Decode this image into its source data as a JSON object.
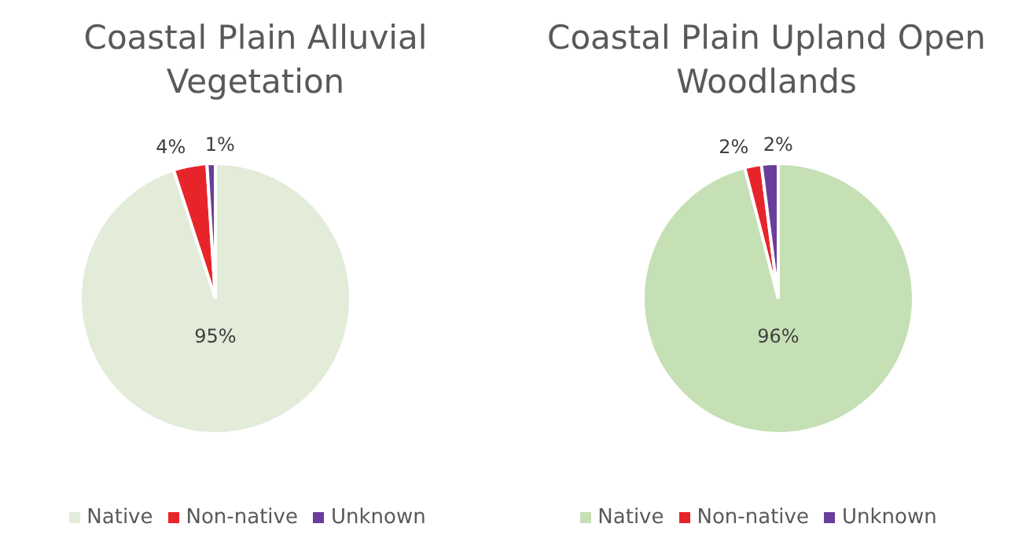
{
  "chart_data": [
    {
      "type": "pie",
      "title": "Coastal Plain Alluvial Vegetation",
      "categories": [
        "Native",
        "Non-native",
        "Unknown"
      ],
      "values": [
        95,
        4,
        1
      ],
      "value_labels": [
        "95%",
        "4%",
        "1%"
      ],
      "colors": [
        "#e2ecd9",
        "#e8242b",
        "#6a3d9a"
      ],
      "legend": "bottom"
    },
    {
      "type": "pie",
      "title": "Coastal Plain Upland Open Woodlands",
      "categories": [
        "Native",
        "Non-native",
        "Unknown"
      ],
      "values": [
        96,
        2,
        2
      ],
      "value_labels": [
        "96%",
        "2%",
        "2%"
      ],
      "colors": [
        "#c5e0b4",
        "#e8242b",
        "#6a3d9a"
      ],
      "legend": "bottom"
    }
  ]
}
